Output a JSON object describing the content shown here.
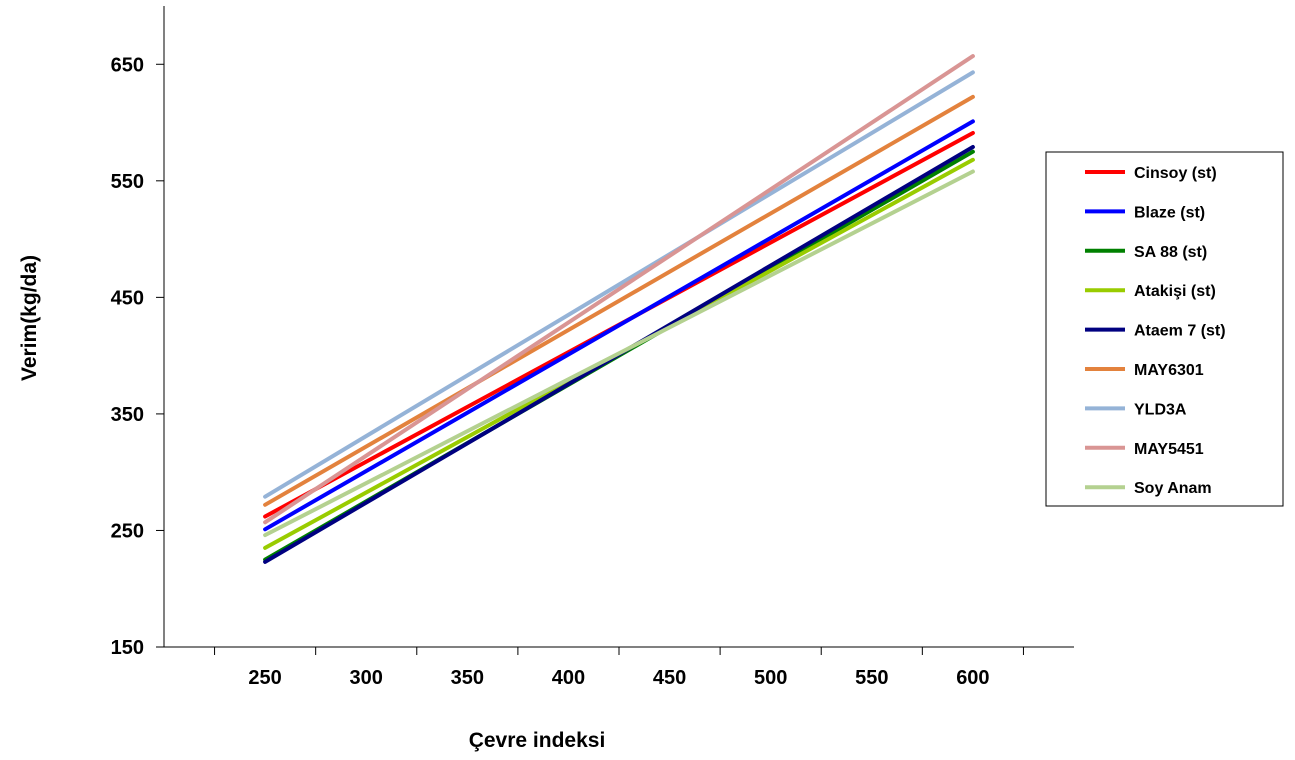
{
  "chart_data": {
    "type": "line",
    "title": "",
    "xlabel": "Çevre indeksi",
    "ylabel": "Verim(kg/da)",
    "xlim": [
      200,
      650
    ],
    "ylim": [
      150,
      700
    ],
    "x_ticks": [
      250,
      300,
      350,
      400,
      450,
      500,
      550,
      600
    ],
    "y_ticks": [
      150,
      250,
      350,
      450,
      550,
      650
    ],
    "grid": false,
    "legend_position": "right",
    "series": [
      {
        "name": "Cinsoy (st)",
        "color": "#ff0000",
        "x": [
          250,
          600
        ],
        "y": [
          262,
          591
        ]
      },
      {
        "name": "Blaze (st)",
        "color": "#0000ff",
        "x": [
          250,
          600
        ],
        "y": [
          251,
          601
        ]
      },
      {
        "name": "SA 88 (st)",
        "color": "#008000",
        "x": [
          250,
          600
        ],
        "y": [
          225,
          575
        ]
      },
      {
        "name": "Atakişi (st)",
        "color": "#99cc00",
        "x": [
          250,
          600
        ],
        "y": [
          235,
          568
        ]
      },
      {
        "name": "Ataem 7 (st)",
        "color": "#000080",
        "x": [
          250,
          600
        ],
        "y": [
          223,
          579
        ]
      },
      {
        "name": "MAY6301",
        "color": "#e3823d",
        "x": [
          250,
          600
        ],
        "y": [
          272,
          622
        ]
      },
      {
        "name": "YLD3A",
        "color": "#95b3d7",
        "x": [
          250,
          600
        ],
        "y": [
          279,
          643
        ]
      },
      {
        "name": "MAY5451",
        "color": "#d99594",
        "x": [
          250,
          600
        ],
        "y": [
          257,
          657
        ]
      },
      {
        "name": "Soy Anam",
        "color": "#b4d190",
        "x": [
          250,
          600
        ],
        "y": [
          246,
          558
        ]
      }
    ]
  }
}
